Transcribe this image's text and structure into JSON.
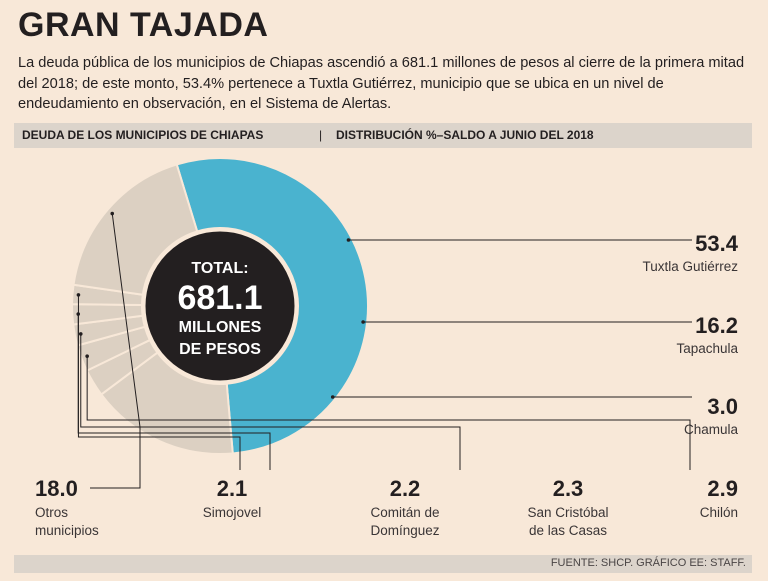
{
  "header": {
    "title": "GRAN TAJADA",
    "intro": "La deuda pública de los municipios de Chiapas ascendió a 681.1 millones de pesos al cierre de la primera mitad del 2018; de este monto, 53.4% pertenece a Tuxtla Gutiérrez, municipio que se ubica en un nivel de endeudamiento en observación, en el Sistema de Alertas."
  },
  "subheader": {
    "left": "DEUDA DE LOS MUNICIPIOS DE CHIAPAS",
    "separator": "|",
    "right": "DISTRIBUCIÓN %–SALDO A JUNIO DEL 2018"
  },
  "center": {
    "line1": "TOTAL:",
    "value": "681.1",
    "line2": "MILLONES",
    "line3": "DE PESOS"
  },
  "colors": {
    "highlight": "#4ab3cf",
    "others": "#dcd0c2",
    "center": "#231f20",
    "divider": "#f8e8d8",
    "leader": "#231f20"
  },
  "chart_data": {
    "type": "pie",
    "variant": "donut",
    "title": "DEUDA DE LOS MUNICIPIOS DE CHIAPAS",
    "subtitle": "DISTRIBUCIÓN %–SALDO A JUNIO DEL 2018",
    "unit": "%",
    "total": "681.1 millones de pesos",
    "slices": [
      {
        "label": "Tuxtla Gutiérrez",
        "value": 53.4,
        "value_text": "53.4",
        "highlight": true
      },
      {
        "label": "Tapachula",
        "value": 16.2,
        "value_text": "16.2",
        "highlight": false
      },
      {
        "label": "Chamula",
        "value": 3.0,
        "value_text": "3.0",
        "highlight": false
      },
      {
        "label": "Chilón",
        "value": 2.9,
        "value_text": "2.9",
        "highlight": false
      },
      {
        "label": "San Cristóbal de las Casas",
        "value": 2.3,
        "value_text": "2.3",
        "highlight": false
      },
      {
        "label": "Comitán de Domínguez",
        "value": 2.2,
        "value_text": "2.2",
        "highlight": false
      },
      {
        "label": "Simojovel",
        "value": 2.1,
        "value_text": "2.1",
        "highlight": false
      },
      {
        "label": "Otros municipios",
        "value": 18.0,
        "value_text": "18.0",
        "highlight": false
      }
    ],
    "label_lines": {
      "Tuxtla Gutiérrez": [
        "Tuxtla Gutiérrez"
      ],
      "Tapachula": [
        "Tapachula"
      ],
      "Chamula": [
        "Chamula"
      ],
      "Chilón": [
        "Chilón"
      ],
      "San Cristóbal de las Casas": [
        "San Cristóbal",
        "de las Casas"
      ],
      "Comitán de Domínguez": [
        "Comitán de",
        "Domínguez"
      ],
      "Simojovel": [
        "Simojovel"
      ],
      "Otros municipios": [
        "Otros",
        "municipios"
      ]
    }
  },
  "footer": {
    "source": "FUENTE: SHCP. GRÁFICO EE: STAFF."
  }
}
